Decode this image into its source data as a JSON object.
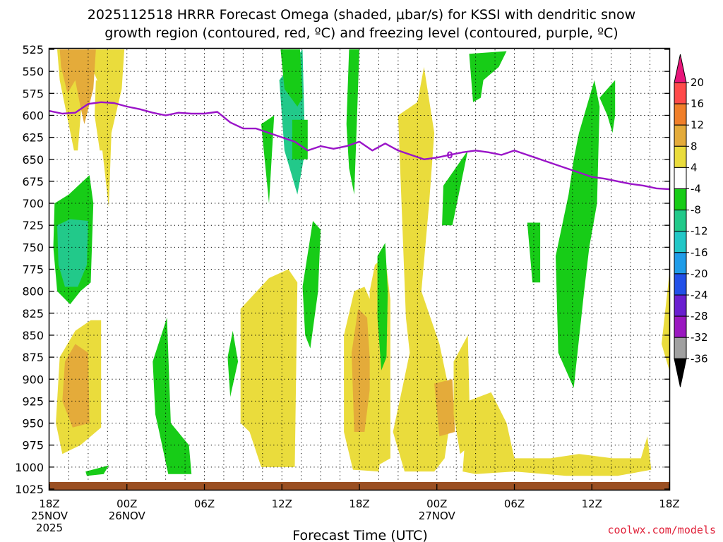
{
  "chart_data": {
    "type": "time-height cross section",
    "title_line1": "2025112518 HRRR Forecast Omega (shaded, μbar/s) for KSSI with dendritic snow",
    "title_line2": "growth region (contoured, red, ºC) and freezing level (contoured, purple, ºC)",
    "xlabel": "Forecast Time (UTC)",
    "credit": "coolwx.com/models",
    "x_range_hours": [
      0,
      48
    ],
    "y_range_mb": [
      1025,
      525
    ],
    "y_ticks": [
      525,
      550,
      575,
      600,
      625,
      650,
      675,
      700,
      725,
      750,
      775,
      800,
      825,
      850,
      875,
      900,
      925,
      950,
      975,
      1000,
      1025
    ],
    "x_ticks": [
      {
        "hour": 0,
        "lines": [
          "18Z",
          "25NOV",
          "2025"
        ]
      },
      {
        "hour": 6,
        "lines": [
          "00Z",
          "26NOV"
        ]
      },
      {
        "hour": 12,
        "lines": [
          "06Z"
        ]
      },
      {
        "hour": 18,
        "lines": [
          "12Z"
        ]
      },
      {
        "hour": 24,
        "lines": [
          "18Z"
        ]
      },
      {
        "hour": 30,
        "lines": [
          "00Z",
          "27NOV"
        ]
      },
      {
        "hour": 36,
        "lines": [
          "06Z"
        ]
      },
      {
        "hour": 42,
        "lines": [
          "12Z"
        ]
      },
      {
        "hour": 48,
        "lines": [
          "18Z"
        ]
      }
    ],
    "colorbar": {
      "labels": [
        "20",
        "16",
        "12",
        "8",
        "4",
        "-4",
        "-8",
        "-12",
        "-16",
        "-20",
        "-24",
        "-28",
        "-32",
        "-36"
      ],
      "colors": [
        "#ff4a4a",
        "#f07f2a",
        "#e4ab3a",
        "#eadc3c",
        "#ffffff",
        "#17cc17",
        "#22c98a",
        "#22c7c7",
        "#1f9ce8",
        "#2250e8",
        "#6a1fd0",
        "#9a18c0",
        "#a0a0a0"
      ],
      "top_arrow_color": "#e8157a",
      "bottom_arrow_color": "#000000"
    },
    "freezing_level": {
      "color": "#9a14c8",
      "label": "0",
      "label_hour": 31,
      "hours": [
        0,
        1,
        2,
        3,
        4,
        5,
        6,
        7,
        8,
        9,
        10,
        11,
        12,
        13,
        14,
        15,
        16,
        17,
        18,
        19,
        20,
        21,
        22,
        23,
        24,
        25,
        26,
        27,
        28,
        29,
        30,
        31,
        32,
        33,
        34,
        35,
        36,
        37,
        38,
        39,
        40,
        41,
        42,
        43,
        44,
        45,
        46,
        47,
        48
      ],
      "mb": [
        595,
        598,
        597,
        587,
        585,
        586,
        590,
        593,
        597,
        600,
        597,
        598,
        598,
        596,
        608,
        615,
        615,
        620,
        625,
        630,
        640,
        635,
        638,
        635,
        630,
        640,
        632,
        640,
        645,
        650,
        648,
        645,
        642,
        640,
        642,
        645,
        640,
        645,
        650,
        655,
        660,
        665,
        670,
        672,
        675,
        678,
        680,
        683,
        684
      ]
    },
    "omega_regions": [
      {
        "level": "8",
        "hours": [
          [
            0.6,
            525
          ],
          [
            5.8,
            525
          ],
          [
            5.6,
            570
          ],
          [
            4.8,
            620
          ],
          [
            4.6,
            705
          ],
          [
            4.1,
            640
          ],
          [
            3.7,
            560
          ],
          [
            2.8,
            530
          ],
          [
            2.2,
            640
          ],
          [
            1.9,
            640
          ],
          [
            0.8,
            560
          ]
        ]
      },
      {
        "level": "12",
        "hours": [
          [
            0.8,
            525
          ],
          [
            3.6,
            525
          ],
          [
            3.4,
            570
          ],
          [
            2.7,
            610
          ],
          [
            2.4,
            590
          ],
          [
            2.0,
            560
          ],
          [
            1.4,
            575
          ],
          [
            0.9,
            545
          ]
        ]
      },
      {
        "level": "8",
        "hours": [
          [
            3.6,
            560
          ],
          [
            4.4,
            565
          ],
          [
            4.2,
            640
          ],
          [
            3.9,
            640
          ],
          [
            3.5,
            600
          ]
        ]
      },
      {
        "level": "-4",
        "hours": [
          [
            0.4,
            700
          ],
          [
            1.5,
            690
          ],
          [
            3.1,
            668
          ],
          [
            3.4,
            700
          ],
          [
            3.2,
            790
          ],
          [
            2.4,
            800
          ],
          [
            1.6,
            815
          ],
          [
            0.6,
            800
          ],
          [
            0.3,
            750
          ]
        ]
      },
      {
        "level": "-8",
        "hours": [
          [
            0.6,
            725
          ],
          [
            1.6,
            718
          ],
          [
            3.0,
            720
          ],
          [
            2.9,
            770
          ],
          [
            2.2,
            795
          ],
          [
            1.2,
            795
          ],
          [
            0.7,
            770
          ]
        ]
      },
      {
        "level": "8",
        "hours": [
          [
            0.8,
            875
          ],
          [
            2.0,
            845
          ],
          [
            3.2,
            833
          ],
          [
            4.0,
            833
          ],
          [
            4.0,
            955
          ],
          [
            2.4,
            975
          ],
          [
            1.0,
            985
          ],
          [
            0.5,
            950
          ]
        ]
      },
      {
        "level": "12",
        "hours": [
          [
            1.2,
            880
          ],
          [
            2.0,
            860
          ],
          [
            3.0,
            870
          ],
          [
            3.1,
            950
          ],
          [
            1.8,
            955
          ],
          [
            1.0,
            925
          ]
        ]
      },
      {
        "level": "-4",
        "hours": [
          [
            2.8,
            1005
          ],
          [
            4.6,
            998
          ],
          [
            4.2,
            1008
          ],
          [
            2.9,
            1010
          ]
        ]
      },
      {
        "level": "-4",
        "hours": [
          [
            8.0,
            880
          ],
          [
            9.1,
            830
          ],
          [
            9.4,
            950
          ],
          [
            10.8,
            975
          ],
          [
            11.0,
            1008
          ],
          [
            9.2,
            1008
          ],
          [
            8.5,
            960
          ],
          [
            8.2,
            940
          ]
        ]
      },
      {
        "level": "8",
        "hours": [
          [
            14.8,
            820
          ],
          [
            17.0,
            785
          ],
          [
            18.5,
            775
          ],
          [
            19.2,
            790
          ],
          [
            19.0,
            1000
          ],
          [
            16.4,
            1000
          ],
          [
            15.5,
            960
          ],
          [
            14.8,
            950
          ]
        ]
      },
      {
        "level": "8",
        "hours": [
          [
            22.8,
            850
          ],
          [
            23.6,
            800
          ],
          [
            24.4,
            795
          ],
          [
            26.0,
            850
          ],
          [
            26.4,
            900
          ],
          [
            25.5,
            1005
          ],
          [
            23.5,
            1003
          ],
          [
            22.8,
            960
          ]
        ]
      },
      {
        "level": "12",
        "hours": [
          [
            23.4,
            870
          ],
          [
            23.9,
            820
          ],
          [
            24.6,
            830
          ],
          [
            24.9,
            900
          ],
          [
            24.4,
            960
          ],
          [
            23.6,
            960
          ]
        ]
      },
      {
        "level": "8",
        "hours": [
          [
            24.8,
            800
          ],
          [
            25.2,
            770
          ],
          [
            26.0,
            760
          ],
          [
            26.4,
            810
          ],
          [
            26.4,
            990
          ],
          [
            25.2,
            1000
          ],
          [
            24.8,
            960
          ]
        ]
      },
      {
        "level": "-4",
        "hours": [
          [
            25.4,
            760
          ],
          [
            26.0,
            745
          ],
          [
            26.2,
            800
          ],
          [
            26.1,
            875
          ],
          [
            25.7,
            890
          ],
          [
            25.4,
            830
          ]
        ]
      },
      {
        "level": "8",
        "hours": [
          [
            27.0,
            600
          ],
          [
            28.5,
            585
          ],
          [
            29.0,
            545
          ],
          [
            29.8,
            620
          ],
          [
            29.4,
            700
          ],
          [
            28.8,
            800
          ],
          [
            30.2,
            860
          ],
          [
            31.2,
            930
          ],
          [
            30.6,
            990
          ],
          [
            29.8,
            1005
          ],
          [
            27.5,
            1005
          ],
          [
            26.6,
            960
          ],
          [
            27.4,
            905
          ],
          [
            27.9,
            870
          ],
          [
            27.6,
            830
          ]
        ]
      },
      {
        "level": "12",
        "hours": [
          [
            29.8,
            905
          ],
          [
            31.2,
            900
          ],
          [
            31.4,
            960
          ],
          [
            30.2,
            965
          ]
        ]
      },
      {
        "level": "-4",
        "hours": [
          [
            23.2,
            525
          ],
          [
            24.0,
            525
          ],
          [
            23.8,
            610
          ],
          [
            23.6,
            690
          ],
          [
            23.2,
            660
          ],
          [
            23.0,
            610
          ]
        ]
      },
      {
        "level": "8",
        "hours": [
          [
            31.3,
            880
          ],
          [
            32.4,
            850
          ],
          [
            32.6,
            975
          ],
          [
            31.8,
            985
          ],
          [
            31.3,
            940
          ]
        ]
      },
      {
        "level": "8",
        "hours": [
          [
            32.4,
            925
          ],
          [
            34.2,
            915
          ],
          [
            35.4,
            950
          ],
          [
            36.0,
            990
          ],
          [
            38.8,
            990
          ],
          [
            41.0,
            985
          ],
          [
            43.6,
            990
          ],
          [
            45.8,
            990
          ],
          [
            46.3,
            965
          ],
          [
            46.6,
            1003
          ],
          [
            44.0,
            1010
          ],
          [
            40.0,
            1010
          ],
          [
            36.0,
            1005
          ],
          [
            33.0,
            1008
          ],
          [
            32.0,
            1005
          ]
        ]
      },
      {
        "level": "-4",
        "hours": [
          [
            30.5,
            680
          ],
          [
            32.4,
            640
          ],
          [
            31.2,
            725
          ],
          [
            30.4,
            725
          ]
        ]
      },
      {
        "level": "-4",
        "hours": [
          [
            32.5,
            530
          ],
          [
            35.4,
            527
          ],
          [
            34.8,
            545
          ],
          [
            33.6,
            560
          ],
          [
            33.4,
            580
          ],
          [
            32.8,
            585
          ]
        ]
      },
      {
        "level": "-4",
        "hours": [
          [
            37.0,
            722
          ],
          [
            38.0,
            722
          ],
          [
            38.0,
            790
          ],
          [
            37.4,
            790
          ]
        ]
      },
      {
        "level": "-4",
        "hours": [
          [
            41.0,
            620
          ],
          [
            42.2,
            560
          ],
          [
            42.6,
            590
          ],
          [
            42.4,
            700
          ],
          [
            41.8,
            750
          ],
          [
            41.4,
            800
          ],
          [
            40.6,
            910
          ],
          [
            39.4,
            870
          ],
          [
            39.2,
            760
          ],
          [
            40.2,
            690
          ],
          [
            40.6,
            650
          ]
        ]
      },
      {
        "level": "-4",
        "hours": [
          [
            42.6,
            580
          ],
          [
            43.8,
            560
          ],
          [
            43.8,
            600
          ],
          [
            43.6,
            620
          ],
          [
            43.2,
            600
          ]
        ]
      },
      {
        "level": "-4",
        "hours": [
          [
            19.6,
            795
          ],
          [
            20.4,
            720
          ],
          [
            21.0,
            730
          ],
          [
            20.8,
            800
          ],
          [
            20.2,
            865
          ],
          [
            19.8,
            850
          ]
        ]
      },
      {
        "level": "-8",
        "hours": [
          [
            17.8,
            560
          ],
          [
            19.6,
            525
          ],
          [
            19.8,
            640
          ],
          [
            19.2,
            690
          ],
          [
            18.2,
            640
          ]
        ]
      },
      {
        "level": "-4",
        "hours": [
          [
            17.9,
            525
          ],
          [
            19.4,
            525
          ],
          [
            19.6,
            580
          ],
          [
            19.2,
            590
          ],
          [
            18.2,
            570
          ]
        ]
      },
      {
        "level": "-4",
        "hours": [
          [
            16.4,
            610
          ],
          [
            17.4,
            600
          ],
          [
            17.0,
            700
          ],
          [
            16.6,
            640
          ]
        ]
      },
      {
        "level": "8",
        "hours": [
          [
            47.4,
            860
          ],
          [
            48.0,
            780
          ],
          [
            48.0,
            890
          ]
        ]
      },
      {
        "level": "-4",
        "hours": [
          [
            13.8,
            875
          ],
          [
            14.2,
            845
          ],
          [
            14.6,
            880
          ],
          [
            14.0,
            920
          ]
        ]
      },
      {
        "level": "-4",
        "hours": [
          [
            18.8,
            605
          ],
          [
            20.0,
            605
          ],
          [
            20.0,
            650
          ],
          [
            18.8,
            650
          ]
        ]
      }
    ]
  }
}
